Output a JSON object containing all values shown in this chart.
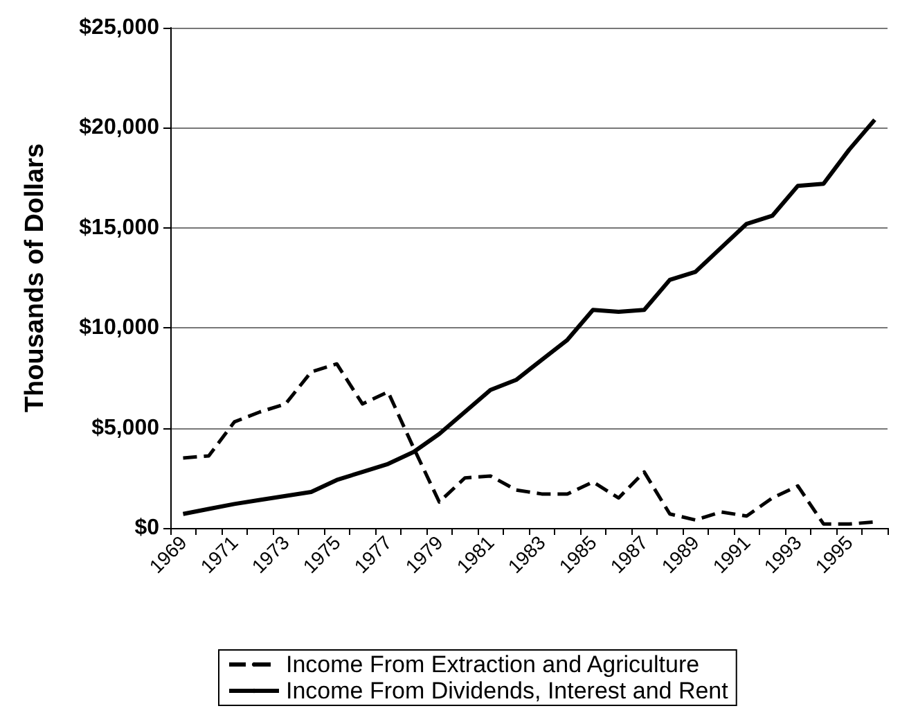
{
  "chart_data": {
    "type": "line",
    "ylabel": "Thousands of Dollars",
    "categories": [
      "1969",
      null,
      "1971",
      null,
      "1973",
      null,
      "1975",
      null,
      "1977",
      null,
      "1979",
      null,
      "1981",
      null,
      "1983",
      null,
      "1985",
      null,
      "1987",
      null,
      "1989",
      null,
      "1991",
      null,
      "1993",
      null,
      "1995",
      null
    ],
    "series": [
      {
        "name": "Income From Extraction and Agriculture",
        "color": "#000000",
        "line_style": "dashed",
        "values": [
          3500,
          3600,
          5300,
          5800,
          6200,
          7800,
          8200,
          6200,
          6800,
          4000,
          1300,
          2500,
          2600,
          1900,
          1700,
          1700,
          2300,
          1500,
          2800,
          700,
          400,
          800,
          600,
          1500,
          2100,
          200,
          200,
          300
        ]
      },
      {
        "name": "Income From Dividends, Interest and Rent",
        "color": "#000000",
        "line_style": "solid",
        "values": [
          700,
          950,
          1200,
          1400,
          1600,
          1800,
          2400,
          2800,
          3200,
          3800,
          4700,
          5800,
          6900,
          7400,
          8400,
          9400,
          10900,
          10800,
          10900,
          12400,
          12800,
          14000,
          15200,
          15600,
          17100,
          17200,
          18900,
          20400
        ]
      }
    ],
    "ylim": [
      0,
      25000
    ],
    "yticks": [
      {
        "value": 0,
        "label": "$0"
      },
      {
        "value": 5000,
        "label": "$5,000"
      },
      {
        "value": 10000,
        "label": "$10,000"
      },
      {
        "value": 15000,
        "label": "$15,000"
      },
      {
        "value": 20000,
        "label": "$20,000"
      },
      {
        "value": 25000,
        "label": "$25,000"
      }
    ],
    "grid": "y",
    "legend": "bottom",
    "marker": "none"
  }
}
